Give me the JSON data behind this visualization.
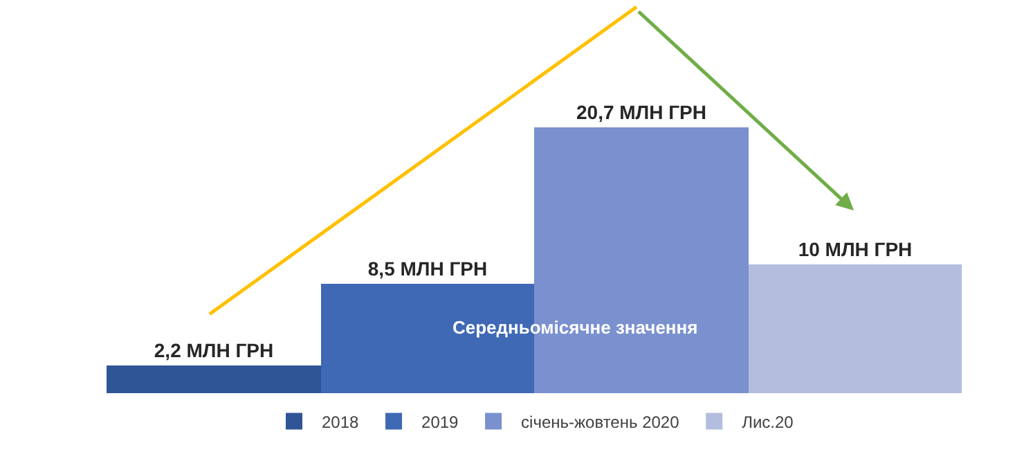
{
  "chart_data": {
    "type": "bar",
    "categories": [
      null
    ],
    "series": [
      {
        "name": "2018",
        "color": "#2f5597",
        "values": [
          2.2
        ],
        "value_labels": [
          "2,2 МЛН ГРН"
        ]
      },
      {
        "name": "2019",
        "color": "#3f68b5",
        "values": [
          8.5
        ],
        "value_labels": [
          "8,5 МЛН ГРН"
        ]
      },
      {
        "name": "січень-жовтень 2020",
        "color": "#7a90cf",
        "values": [
          20.7
        ],
        "value_labels": [
          "20,7 МЛН ГРН"
        ]
      },
      {
        "name": "Лис.20",
        "color": "#b3bedf",
        "values": [
          10
        ],
        "value_labels": [
          "10 МЛН ГРН"
        ]
      }
    ],
    "annotations": [
      "Середньомісячне значення"
    ],
    "legend": "bottom"
  }
}
